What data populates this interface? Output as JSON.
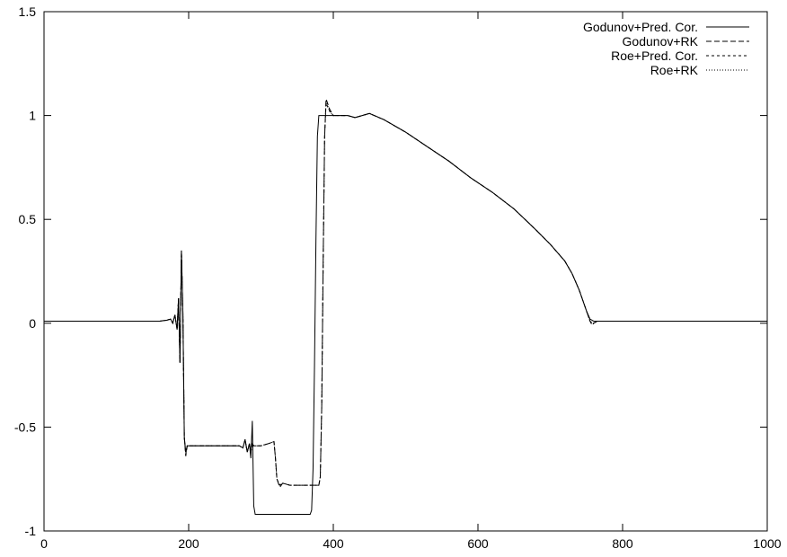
{
  "chart_data": {
    "type": "line",
    "title": "",
    "xlabel": "",
    "ylabel": "",
    "xlim": [
      0,
      1000
    ],
    "ylim": [
      -1,
      1.5
    ],
    "xticks": [
      0,
      200,
      400,
      600,
      800,
      1000
    ],
    "xtick_labels": [
      "0",
      "200",
      "400",
      "600",
      "800",
      "1000"
    ],
    "yticks": [
      -1,
      -0.5,
      0,
      0.5,
      1,
      1.5
    ],
    "ytick_labels": [
      "-1",
      "-0.5",
      "0",
      "0.5",
      "1",
      "1.5"
    ],
    "grid": false,
    "legend_position": "top-right",
    "series": [
      {
        "name": "Godunov+Pred. Cor.",
        "style": "solid",
        "x": [
          0,
          160,
          170,
          175,
          178,
          181,
          184,
          186,
          188,
          190,
          192,
          194,
          196,
          198,
          200,
          205,
          210,
          260,
          270,
          275,
          278,
          281,
          284,
          286,
          288,
          290,
          292,
          300,
          360,
          368,
          370,
          372,
          374,
          376,
          378,
          380,
          390,
          400,
          410,
          420,
          430,
          440,
          450,
          470,
          500,
          530,
          560,
          590,
          620,
          650,
          680,
          700,
          720,
          730,
          740,
          745,
          750,
          755,
          760,
          800,
          900,
          1000
        ],
        "y": [
          0.01,
          0.01,
          0.015,
          0.02,
          0.0,
          0.04,
          -0.03,
          0.12,
          -0.19,
          0.35,
          0.05,
          -0.55,
          -0.62,
          -0.59,
          -0.59,
          -0.59,
          -0.59,
          -0.59,
          -0.59,
          -0.6,
          -0.56,
          -0.62,
          -0.58,
          -0.65,
          -0.47,
          -0.88,
          -0.92,
          -0.92,
          -0.92,
          -0.92,
          -0.9,
          -0.7,
          -0.2,
          0.4,
          0.9,
          1.0,
          1.0,
          1.0,
          1.0,
          1.0,
          0.99,
          1.0,
          1.01,
          0.98,
          0.92,
          0.85,
          0.78,
          0.7,
          0.63,
          0.55,
          0.45,
          0.38,
          0.3,
          0.24,
          0.16,
          0.11,
          0.06,
          0.02,
          0.01,
          0.01,
          0.01,
          0.01
        ]
      },
      {
        "name": "Godunov+RK",
        "style": "dashed",
        "x": [
          0,
          160,
          170,
          175,
          178,
          181,
          184,
          186,
          188,
          190,
          192,
          194,
          196,
          198,
          200,
          205,
          210,
          260,
          270,
          275,
          278,
          281,
          284,
          286,
          288,
          290,
          300,
          310,
          318,
          320,
          322,
          326,
          330,
          340,
          360,
          375,
          380,
          382,
          384,
          386,
          388,
          390,
          395,
          400,
          410,
          420,
          430,
          440,
          450,
          470,
          500,
          530,
          560,
          590,
          620,
          650,
          680,
          700,
          720,
          730,
          740,
          745,
          750,
          755,
          758,
          760,
          765,
          800,
          900,
          1000
        ],
        "y": [
          0.01,
          0.01,
          0.015,
          0.02,
          0.0,
          0.04,
          -0.03,
          0.12,
          -0.19,
          0.35,
          0.05,
          -0.55,
          -0.64,
          -0.59,
          -0.59,
          -0.59,
          -0.59,
          -0.59,
          -0.59,
          -0.6,
          -0.56,
          -0.62,
          -0.58,
          -0.62,
          -0.58,
          -0.59,
          -0.59,
          -0.58,
          -0.57,
          -0.65,
          -0.75,
          -0.79,
          -0.77,
          -0.78,
          -0.78,
          -0.78,
          -0.78,
          -0.74,
          -0.4,
          0.3,
          0.9,
          1.08,
          1.03,
          1.0,
          1.0,
          1.0,
          0.99,
          1.0,
          1.01,
          0.98,
          0.92,
          0.85,
          0.78,
          0.7,
          0.63,
          0.55,
          0.45,
          0.38,
          0.3,
          0.24,
          0.16,
          0.11,
          0.06,
          0.01,
          -0.01,
          0.0,
          0.01,
          0.01,
          0.01,
          0.01
        ]
      },
      {
        "name": "Roe+Pred. Cor.",
        "style": "short-dashed",
        "x": [
          0,
          160,
          170,
          175,
          178,
          181,
          184,
          186,
          188,
          190,
          192,
          194,
          196,
          198,
          200,
          205,
          210,
          260,
          270,
          275,
          278,
          281,
          284,
          286,
          288,
          290,
          300,
          310,
          318,
          320,
          322,
          326,
          330,
          340,
          360,
          375,
          380,
          382,
          384,
          386,
          388,
          390,
          395,
          400,
          410,
          420,
          430,
          440,
          450,
          470,
          500,
          530,
          560,
          590,
          620,
          650,
          680,
          700,
          720,
          730,
          740,
          745,
          750,
          755,
          758,
          760,
          765,
          800,
          900,
          1000
        ],
        "y": [
          0.01,
          0.01,
          0.015,
          0.02,
          0.0,
          0.04,
          -0.03,
          0.12,
          -0.19,
          0.35,
          0.05,
          -0.55,
          -0.63,
          -0.59,
          -0.59,
          -0.59,
          -0.59,
          -0.59,
          -0.59,
          -0.6,
          -0.56,
          -0.62,
          -0.58,
          -0.62,
          -0.58,
          -0.59,
          -0.59,
          -0.58,
          -0.57,
          -0.65,
          -0.75,
          -0.78,
          -0.77,
          -0.78,
          -0.78,
          -0.78,
          -0.78,
          -0.74,
          -0.4,
          0.3,
          0.9,
          1.06,
          1.02,
          1.0,
          1.0,
          1.0,
          0.99,
          1.0,
          1.01,
          0.98,
          0.92,
          0.85,
          0.78,
          0.7,
          0.63,
          0.55,
          0.45,
          0.38,
          0.3,
          0.24,
          0.16,
          0.11,
          0.06,
          0.01,
          0.0,
          0.0,
          0.01,
          0.01,
          0.01,
          0.01
        ]
      },
      {
        "name": "Roe+RK",
        "style": "dotted",
        "x": [
          0,
          160,
          170,
          175,
          178,
          181,
          184,
          186,
          188,
          190,
          192,
          194,
          196,
          198,
          200,
          205,
          210,
          260,
          270,
          275,
          278,
          281,
          284,
          286,
          288,
          290,
          300,
          310,
          318,
          320,
          322,
          326,
          330,
          340,
          360,
          375,
          380,
          382,
          384,
          386,
          388,
          390,
          395,
          400,
          410,
          420,
          430,
          440,
          450,
          470,
          500,
          530,
          560,
          590,
          620,
          650,
          680,
          700,
          720,
          730,
          740,
          745,
          750,
          755,
          758,
          760,
          765,
          800,
          900,
          1000
        ],
        "y": [
          0.01,
          0.01,
          0.015,
          0.02,
          0.0,
          0.04,
          -0.03,
          0.12,
          -0.19,
          0.35,
          0.05,
          -0.55,
          -0.63,
          -0.59,
          -0.59,
          -0.59,
          -0.59,
          -0.59,
          -0.59,
          -0.6,
          -0.56,
          -0.62,
          -0.58,
          -0.62,
          -0.58,
          -0.59,
          -0.59,
          -0.58,
          -0.57,
          -0.65,
          -0.75,
          -0.78,
          -0.77,
          -0.78,
          -0.78,
          -0.78,
          -0.78,
          -0.74,
          -0.4,
          0.3,
          0.9,
          1.07,
          1.02,
          1.0,
          1.0,
          1.0,
          0.99,
          1.0,
          1.01,
          0.98,
          0.92,
          0.85,
          0.78,
          0.7,
          0.63,
          0.55,
          0.45,
          0.38,
          0.3,
          0.24,
          0.16,
          0.11,
          0.06,
          0.01,
          0.0,
          0.0,
          0.01,
          0.01,
          0.01,
          0.01
        ]
      }
    ]
  }
}
